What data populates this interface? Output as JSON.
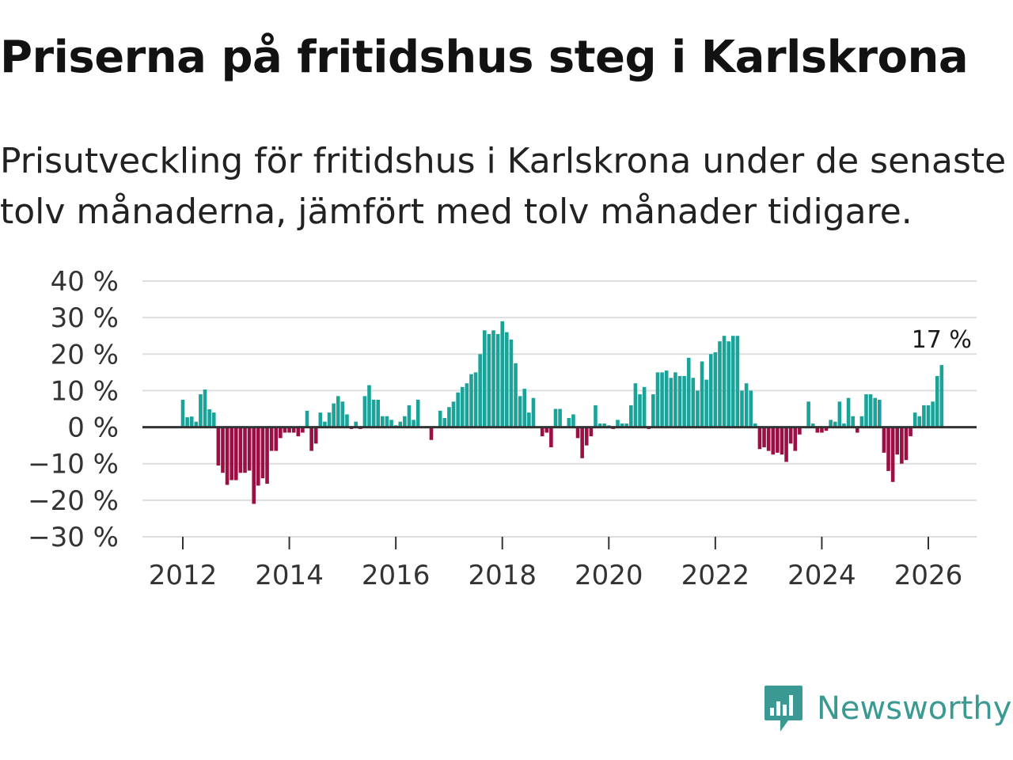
{
  "header": {
    "title": "Priserna på fritidshus steg i Karlskrona",
    "subtitle": "Prisutveckling för fritidshus i Karlskrona under de senaste tolv månaderna, jämfört med tolv månader tidigare."
  },
  "brand": {
    "name": "Newsworthy",
    "icon": "newsworthy-logo-icon"
  },
  "colors": {
    "positive": "#1ba39a",
    "negative": "#9b0f45",
    "grid": "#dddddd",
    "zero_line": "#333333"
  },
  "chart_data": {
    "type": "bar",
    "title": "Priserna på fritidshus steg i Karlskrona",
    "xlabel": "",
    "ylabel": "",
    "ylim": [
      -30,
      40
    ],
    "y_ticks": [
      40,
      30,
      20,
      10,
      0,
      -10,
      -20,
      -30
    ],
    "y_tick_labels": [
      "40 %",
      "30 %",
      "20 %",
      "10 %",
      "0 %",
      "−10 %",
      "−20 %",
      "−30 %"
    ],
    "x_ticks": [
      2012,
      2014,
      2016,
      2018,
      2020,
      2022,
      2024,
      2026
    ],
    "x_tick_labels": [
      "2012",
      "2014",
      "2016",
      "2018",
      "2020",
      "2022",
      "2024",
      "2026"
    ],
    "x_start": 2012,
    "x_start_month": 1,
    "frequency": "monthly",
    "grid": true,
    "annotation": {
      "label": "17 %",
      "value": 17,
      "at": "last bar"
    },
    "values": [
      7.5,
      2.7,
      2.9,
      1.5,
      9,
      10.3,
      4.9,
      4,
      -10.5,
      -12.5,
      -15.8,
      -14.5,
      -14.5,
      -12.5,
      -12.5,
      -11.9,
      -21,
      -16,
      -14,
      -15.5,
      -6.5,
      -6.5,
      -3,
      -1.5,
      -1.5,
      -1.5,
      -2.5,
      -1.5,
      4.5,
      -6.5,
      -4.5,
      4,
      1.5,
      4,
      6.5,
      8.5,
      7,
      3.5,
      -0.5,
      1.5,
      -0.5,
      8.5,
      11.5,
      7.5,
      7.5,
      3,
      3,
      2,
      0.5,
      1.5,
      3,
      6,
      2,
      7.5,
      0,
      0,
      -3.5,
      0,
      4.5,
      2.5,
      5.5,
      7,
      9.5,
      11,
      12,
      14.5,
      15,
      20,
      26.5,
      25.5,
      26.5,
      25.5,
      29,
      26,
      24,
      17.5,
      8.5,
      10.5,
      4,
      8,
      0,
      -2.5,
      -1.5,
      -5.5,
      5,
      5,
      0,
      2.5,
      3.5,
      -3,
      -8.5,
      -5,
      -2.5,
      6,
      1,
      1,
      0.5,
      -0.5,
      2,
      1,
      1,
      6,
      12,
      9,
      11,
      -0.5,
      9,
      15,
      15,
      15.5,
      13.5,
      15,
      14,
      14,
      19,
      13.5,
      10,
      18,
      13,
      20,
      20.5,
      23.5,
      25,
      23.5,
      25,
      25,
      10,
      12,
      10,
      1,
      -6,
      -5.5,
      -6.5,
      -7.5,
      -7,
      -7.5,
      -9.5,
      -4.5,
      -6.5,
      -2,
      0,
      7,
      1,
      -1.5,
      -1.5,
      -1,
      2,
      1.5,
      7,
      1,
      8,
      3,
      -1.5,
      3,
      9,
      9,
      8,
      7.5,
      -7,
      -12,
      -15,
      -7.5,
      -10,
      -9,
      -2.5,
      4,
      3,
      6,
      6,
      7,
      14,
      17
    ]
  }
}
